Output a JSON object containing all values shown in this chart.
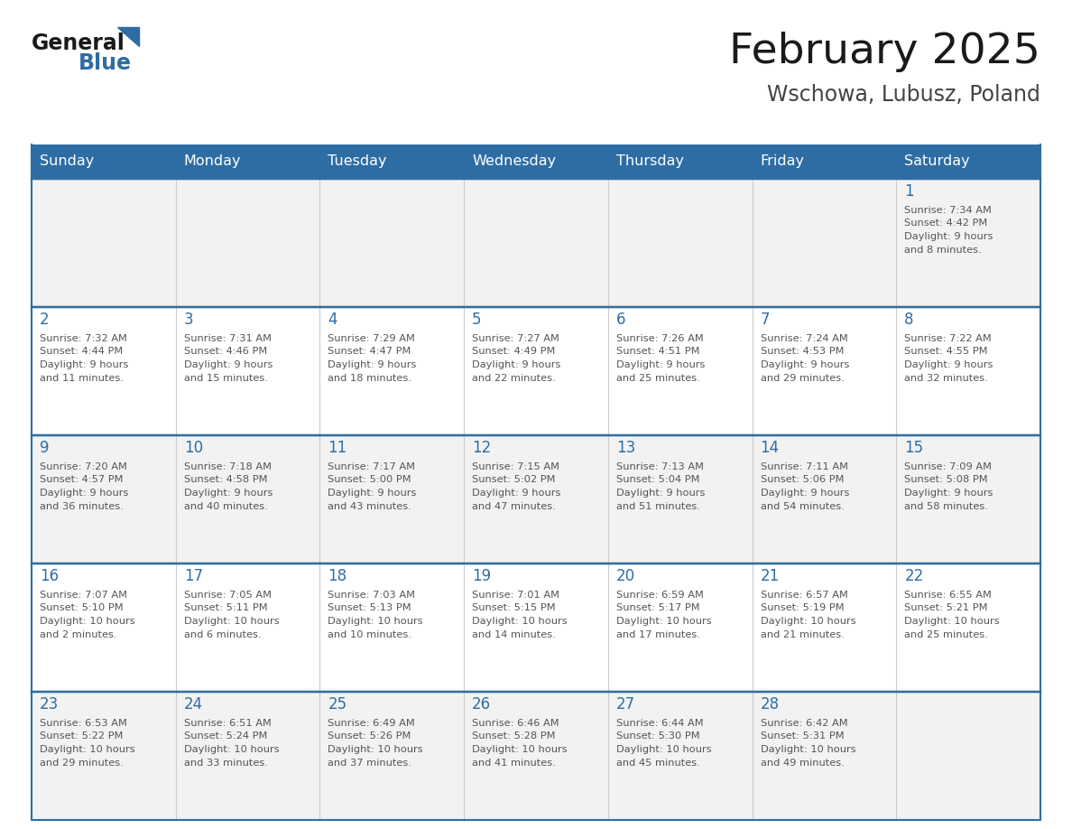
{
  "title": "February 2025",
  "subtitle": "Wschowa, Lubusz, Poland",
  "header_bg": "#2E6DA4",
  "header_text_color": "#FFFFFF",
  "cell_bg_even": "#FFFFFF",
  "cell_bg_odd": "#F2F2F2",
  "cell_border_color": "#2E6DA4",
  "day_number_color": "#2E6DA4",
  "text_color": "#555555",
  "days_of_week": [
    "Sunday",
    "Monday",
    "Tuesday",
    "Wednesday",
    "Thursday",
    "Friday",
    "Saturday"
  ],
  "calendar_data": [
    [
      null,
      null,
      null,
      null,
      null,
      null,
      {
        "day": 1,
        "sunrise": "7:34 AM",
        "sunset": "4:42 PM",
        "daylight": "9 hours and 8 minutes."
      }
    ],
    [
      {
        "day": 2,
        "sunrise": "7:32 AM",
        "sunset": "4:44 PM",
        "daylight": "9 hours and 11 minutes."
      },
      {
        "day": 3,
        "sunrise": "7:31 AM",
        "sunset": "4:46 PM",
        "daylight": "9 hours and 15 minutes."
      },
      {
        "day": 4,
        "sunrise": "7:29 AM",
        "sunset": "4:47 PM",
        "daylight": "9 hours and 18 minutes."
      },
      {
        "day": 5,
        "sunrise": "7:27 AM",
        "sunset": "4:49 PM",
        "daylight": "9 hours and 22 minutes."
      },
      {
        "day": 6,
        "sunrise": "7:26 AM",
        "sunset": "4:51 PM",
        "daylight": "9 hours and 25 minutes."
      },
      {
        "day": 7,
        "sunrise": "7:24 AM",
        "sunset": "4:53 PM",
        "daylight": "9 hours and 29 minutes."
      },
      {
        "day": 8,
        "sunrise": "7:22 AM",
        "sunset": "4:55 PM",
        "daylight": "9 hours and 32 minutes."
      }
    ],
    [
      {
        "day": 9,
        "sunrise": "7:20 AM",
        "sunset": "4:57 PM",
        "daylight": "9 hours and 36 minutes."
      },
      {
        "day": 10,
        "sunrise": "7:18 AM",
        "sunset": "4:58 PM",
        "daylight": "9 hours and 40 minutes."
      },
      {
        "day": 11,
        "sunrise": "7:17 AM",
        "sunset": "5:00 PM",
        "daylight": "9 hours and 43 minutes."
      },
      {
        "day": 12,
        "sunrise": "7:15 AM",
        "sunset": "5:02 PM",
        "daylight": "9 hours and 47 minutes."
      },
      {
        "day": 13,
        "sunrise": "7:13 AM",
        "sunset": "5:04 PM",
        "daylight": "9 hours and 51 minutes."
      },
      {
        "day": 14,
        "sunrise": "7:11 AM",
        "sunset": "5:06 PM",
        "daylight": "9 hours and 54 minutes."
      },
      {
        "day": 15,
        "sunrise": "7:09 AM",
        "sunset": "5:08 PM",
        "daylight": "9 hours and 58 minutes."
      }
    ],
    [
      {
        "day": 16,
        "sunrise": "7:07 AM",
        "sunset": "5:10 PM",
        "daylight": "10 hours and 2 minutes."
      },
      {
        "day": 17,
        "sunrise": "7:05 AM",
        "sunset": "5:11 PM",
        "daylight": "10 hours and 6 minutes."
      },
      {
        "day": 18,
        "sunrise": "7:03 AM",
        "sunset": "5:13 PM",
        "daylight": "10 hours and 10 minutes."
      },
      {
        "day": 19,
        "sunrise": "7:01 AM",
        "sunset": "5:15 PM",
        "daylight": "10 hours and 14 minutes."
      },
      {
        "day": 20,
        "sunrise": "6:59 AM",
        "sunset": "5:17 PM",
        "daylight": "10 hours and 17 minutes."
      },
      {
        "day": 21,
        "sunrise": "6:57 AM",
        "sunset": "5:19 PM",
        "daylight": "10 hours and 21 minutes."
      },
      {
        "day": 22,
        "sunrise": "6:55 AM",
        "sunset": "5:21 PM",
        "daylight": "10 hours and 25 minutes."
      }
    ],
    [
      {
        "day": 23,
        "sunrise": "6:53 AM",
        "sunset": "5:22 PM",
        "daylight": "10 hours and 29 minutes."
      },
      {
        "day": 24,
        "sunrise": "6:51 AM",
        "sunset": "5:24 PM",
        "daylight": "10 hours and 33 minutes."
      },
      {
        "day": 25,
        "sunrise": "6:49 AM",
        "sunset": "5:26 PM",
        "daylight": "10 hours and 37 minutes."
      },
      {
        "day": 26,
        "sunrise": "6:46 AM",
        "sunset": "5:28 PM",
        "daylight": "10 hours and 41 minutes."
      },
      {
        "day": 27,
        "sunrise": "6:44 AM",
        "sunset": "5:30 PM",
        "daylight": "10 hours and 45 minutes."
      },
      {
        "day": 28,
        "sunrise": "6:42 AM",
        "sunset": "5:31 PM",
        "daylight": "10 hours and 49 minutes."
      },
      null
    ]
  ],
  "logo_general_color": "#1a1a1a",
  "logo_blue_color": "#2E6DA4",
  "logo_triangle_color": "#2E6DA4"
}
